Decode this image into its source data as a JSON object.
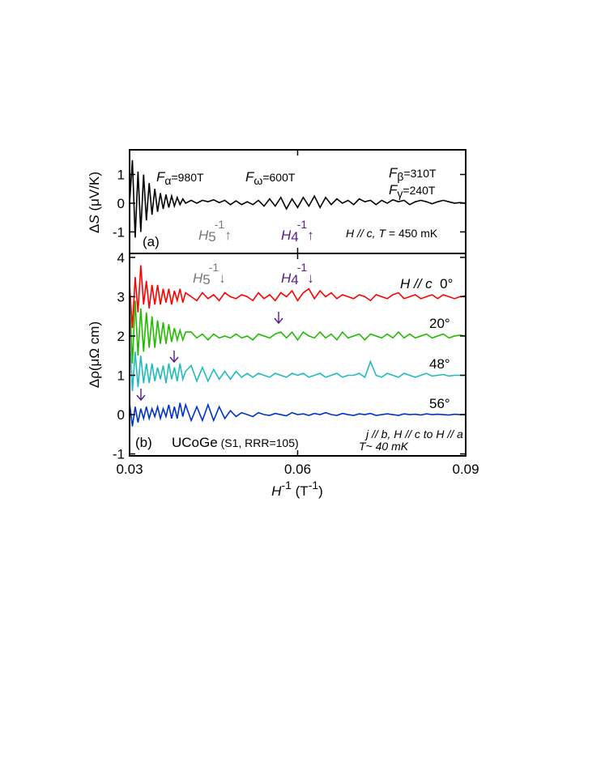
{
  "chart_data": [
    {
      "type": "line",
      "x": [
        0.03,
        0.0305,
        0.031,
        0.0315,
        0.032,
        0.0325,
        0.033,
        0.0335,
        0.034,
        0.0345,
        0.035,
        0.0355,
        0.036,
        0.0365,
        0.037,
        0.0375,
        0.038,
        0.0385,
        0.039,
        0.0395,
        0.04,
        0.041,
        0.042,
        0.043,
        0.044,
        0.045,
        0.046,
        0.047,
        0.048,
        0.049,
        0.05,
        0.051,
        0.052,
        0.053,
        0.054,
        0.055,
        0.056,
        0.057,
        0.058,
        0.059,
        0.06,
        0.061,
        0.062,
        0.063,
        0.064,
        0.065,
        0.066,
        0.067,
        0.068,
        0.069,
        0.07,
        0.071,
        0.072,
        0.073,
        0.074,
        0.075,
        0.076,
        0.077,
        0.078,
        0.079,
        0.08,
        0.081,
        0.082,
        0.083,
        0.084,
        0.085,
        0.086,
        0.087,
        0.088,
        0.089,
        0.09
      ],
      "series": [
        {
          "color": "#000000",
          "values": [
            0,
            1.5,
            -1.2,
            1.1,
            -1.0,
            1.0,
            -0.6,
            0.7,
            -0.4,
            0.5,
            -0.3,
            0.35,
            -0.2,
            0.3,
            -0.15,
            0.25,
            -0.1,
            0.2,
            -0.05,
            0.15,
            0.0,
            0.1,
            0.0,
            0.1,
            0.05,
            0.12,
            0.02,
            0.1,
            -0.05,
            0.08,
            -0.05,
            0.05,
            -0.05,
            0.1,
            -0.1,
            0.15,
            -0.1,
            0.2,
            -0.2,
            0.15,
            -0.15,
            0.2,
            -0.1,
            0.25,
            -0.15,
            0.2,
            -0.05,
            0.15,
            0.0,
            0.1,
            -0.05,
            0.15,
            0.05,
            0.1,
            -0.05,
            0.1,
            0.0,
            0.12,
            0.05,
            0.1,
            -0.05,
            0.05,
            0.1,
            0.05,
            -0.02,
            0.05,
            0.1,
            0.05,
            0.0,
            0.02,
            0.0
          ]
        }
      ],
      "xlim": [
        0.03,
        0.09
      ],
      "xticks": [
        0.03,
        0.06,
        0.09
      ],
      "ylim": [
        -1.75,
        1.86
      ],
      "yticks": [
        -1,
        0,
        1
      ],
      "y_label": [
        "Δ",
        "S",
        " (μV/K)"
      ],
      "annotations": [
        {
          "parts": [
            "F",
            "α",
            "=980T"
          ]
        },
        {
          "parts": [
            "F",
            "ω",
            "=600T"
          ]
        },
        {
          "parts": [
            "F",
            "β",
            "=310T"
          ]
        },
        {
          "parts": [
            "F",
            "γ",
            "=240T"
          ]
        },
        {
          "parts": [
            "H",
            "5",
            "-1",
            "↑"
          ]
        },
        {
          "parts": [
            "H",
            "4",
            "-1",
            "↑"
          ]
        },
        {
          "parts": [
            "H // c, ",
            "T",
            " = 450 mK"
          ]
        },
        {
          "parts": [
            "(a)"
          ]
        }
      ]
    },
    {
      "type": "line",
      "x": [
        0.03,
        0.0305,
        0.031,
        0.0315,
        0.032,
        0.0325,
        0.033,
        0.0335,
        0.034,
        0.0345,
        0.035,
        0.0355,
        0.036,
        0.0365,
        0.037,
        0.0375,
        0.038,
        0.0385,
        0.039,
        0.0395,
        0.04,
        0.041,
        0.042,
        0.043,
        0.044,
        0.045,
        0.046,
        0.047,
        0.048,
        0.049,
        0.05,
        0.051,
        0.052,
        0.053,
        0.054,
        0.055,
        0.056,
        0.057,
        0.058,
        0.059,
        0.06,
        0.061,
        0.062,
        0.063,
        0.064,
        0.065,
        0.066,
        0.067,
        0.068,
        0.069,
        0.07,
        0.071,
        0.072,
        0.073,
        0.074,
        0.075,
        0.076,
        0.077,
        0.078,
        0.079,
        0.08,
        0.081,
        0.082,
        0.083,
        0.084,
        0.085,
        0.086,
        0.087,
        0.088,
        0.089,
        0.09
      ],
      "series": [
        {
          "color": "#ff0000",
          "values": [
            3.3,
            2.2,
            3.5,
            2.6,
            3.8,
            2.8,
            3.4,
            2.7,
            3.3,
            2.8,
            3.3,
            2.8,
            3.2,
            2.85,
            3.2,
            2.8,
            3.15,
            2.9,
            3.2,
            2.85,
            3.1,
            3.0,
            2.9,
            3.1,
            2.95,
            3.05,
            2.9,
            3.1,
            3.0,
            2.95,
            3.05,
            3.0,
            2.9,
            3.1,
            2.95,
            3.05,
            2.9,
            3.1,
            3.0,
            3.15,
            2.9,
            3.1,
            3.2,
            2.95,
            3.15,
            3.0,
            3.1,
            2.95,
            3.05,
            3.0,
            2.95,
            3.05,
            3.0,
            2.9,
            3.05,
            3.0,
            2.95,
            3.05,
            3.1,
            2.95,
            3.0,
            3.05,
            2.95,
            3.0,
            3.05,
            2.95,
            3.05,
            3.0,
            2.95,
            3.0,
            3.02
          ]
        },
        {
          "color": "#22bb00",
          "values": [
            3.0,
            1.3,
            2.9,
            1.5,
            2.7,
            1.6,
            2.6,
            1.7,
            2.5,
            1.7,
            2.4,
            1.8,
            2.35,
            1.8,
            2.3,
            1.85,
            2.2,
            1.9,
            2.15,
            1.9,
            2.1,
            2.1,
            1.95,
            2.05,
            1.9,
            2.05,
            1.95,
            2.0,
            1.95,
            2.05,
            1.95,
            2.0,
            1.9,
            2.05,
            2.0,
            1.95,
            2.05,
            2.1,
            1.95,
            2.1,
            1.9,
            2.1,
            2.0,
            1.95,
            2.1,
            1.95,
            2.05,
            1.9,
            2.1,
            1.95,
            2.0,
            2.05,
            1.9,
            2.05,
            2.0,
            1.95,
            2.05,
            1.95,
            2.1,
            1.95,
            2.05,
            1.95,
            2.0,
            2.05,
            1.95,
            2.0,
            2.05,
            1.95,
            2.0,
            2.02,
            2.0
          ]
        },
        {
          "color": "#22bbbb",
          "values": [
            2.0,
            0.6,
            1.6,
            0.7,
            1.5,
            0.8,
            1.3,
            0.8,
            1.3,
            0.85,
            1.2,
            0.9,
            1.25,
            0.8,
            1.3,
            0.9,
            1.2,
            0.85,
            1.3,
            0.9,
            1.1,
            1.25,
            0.85,
            1.2,
            0.85,
            1.15,
            0.9,
            1.1,
            0.9,
            1.1,
            0.95,
            1.05,
            0.95,
            1.05,
            1.0,
            0.95,
            1.05,
            1.0,
            0.95,
            1.05,
            1.0,
            1.05,
            0.95,
            1.0,
            1.05,
            0.95,
            1.0,
            1.05,
            0.95,
            1.0,
            1.0,
            1.05,
            0.95,
            1.35,
            1.0,
            0.95,
            1.05,
            1.0,
            0.95,
            1.05,
            1.0,
            0.95,
            1.0,
            1.05,
            0.98,
            1.0,
            1.02,
            0.98,
            1.0,
            1.0,
            1.0
          ]
        },
        {
          "color": "#0033cc",
          "values": [
            0.3,
            -0.3,
            0.2,
            -0.2,
            0.15,
            -0.1,
            0.2,
            -0.1,
            0.15,
            -0.05,
            0.2,
            -0.1,
            0.15,
            -0.05,
            0.25,
            -0.1,
            0.2,
            -0.1,
            0.3,
            -0.05,
            0.25,
            -0.15,
            0.2,
            -0.15,
            0.25,
            -0.15,
            0.2,
            -0.1,
            0.1,
            -0.05,
            0.05,
            0.0,
            -0.05,
            0.05,
            0.0,
            -0.02,
            0.03,
            0.0,
            -0.03,
            0.05,
            0.0,
            0.02,
            -0.02,
            0.03,
            0.0,
            0.05,
            0.0,
            -0.02,
            0.03,
            0.0,
            -0.02,
            0.02,
            0.0,
            0.03,
            -0.02,
            0.0,
            0.02,
            0.0,
            -0.02,
            0.02,
            0.0,
            0.01,
            -0.01,
            0.02,
            0.0,
            0.01,
            0.0,
            -0.01,
            0.01,
            0.0,
            0.0
          ]
        }
      ],
      "xlim": [
        0.03,
        0.09
      ],
      "xticks": [
        0.03,
        0.06,
        0.09
      ],
      "ylim": [
        -1.05,
        4.1
      ],
      "yticks": [
        -1,
        0,
        1,
        2,
        3,
        4
      ],
      "x_label": [
        "H",
        "-1",
        " (T",
        "-1",
        ")"
      ],
      "y_label": [
        "Δρ(μΩ cm)"
      ],
      "annotations": [
        {
          "parts": [
            "H",
            "5",
            "-1",
            "↓"
          ]
        },
        {
          "parts": [
            "H",
            "4",
            "-1",
            "↓"
          ]
        },
        {
          "parts": [
            "H // c",
            "  0°"
          ]
        },
        {
          "parts": [
            "20°"
          ]
        },
        {
          "parts": [
            "48°"
          ]
        },
        {
          "parts": [
            "56°"
          ]
        },
        {
          "parts": [
            "(b)"
          ]
        },
        {
          "parts": [
            "UCoGe",
            " (S1, RRR=105)"
          ]
        },
        {
          "parts": [
            "j // b, H // c to H // a"
          ]
        },
        {
          "parts": [
            "T~ 40 mK"
          ]
        }
      ]
    }
  ]
}
